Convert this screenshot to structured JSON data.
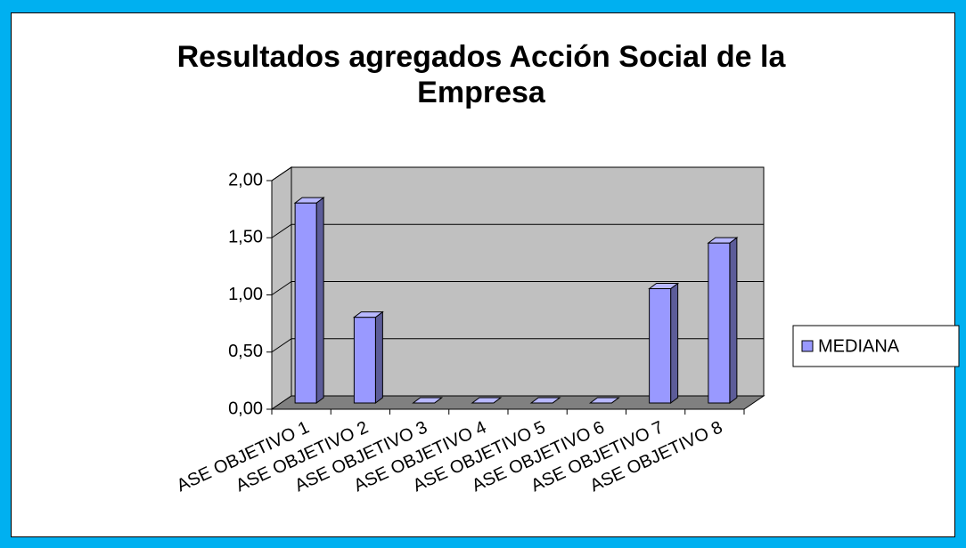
{
  "chart_data": {
    "type": "bar3d",
    "title": "Resultados agregados Acción Social de la Empresa",
    "categories": [
      "ASE OBJETIVO 1",
      "ASE OBJETIVO 2",
      "ASE OBJETIVO 3",
      "ASE OBJETIVO 4",
      "ASE OBJETIVO 5",
      "ASE OBJETIVO 6",
      "ASE OBJETIVO 7",
      "ASE OBJETIVO 8"
    ],
    "series": [
      {
        "name": "MEDIANA",
        "color": "#9999ff",
        "values": [
          1.75,
          0.75,
          0,
          0,
          0,
          0,
          1.0,
          1.4
        ]
      }
    ],
    "ylim": [
      0,
      2
    ],
    "yticks": [
      {
        "value": 0,
        "label": "0,00"
      },
      {
        "value": 0.5,
        "label": "0,50"
      },
      {
        "value": 1,
        "label": "1,00"
      },
      {
        "value": 1.5,
        "label": "1,50"
      },
      {
        "value": 2,
        "label": "2,00"
      }
    ],
    "grid": true,
    "legend": "right"
  }
}
